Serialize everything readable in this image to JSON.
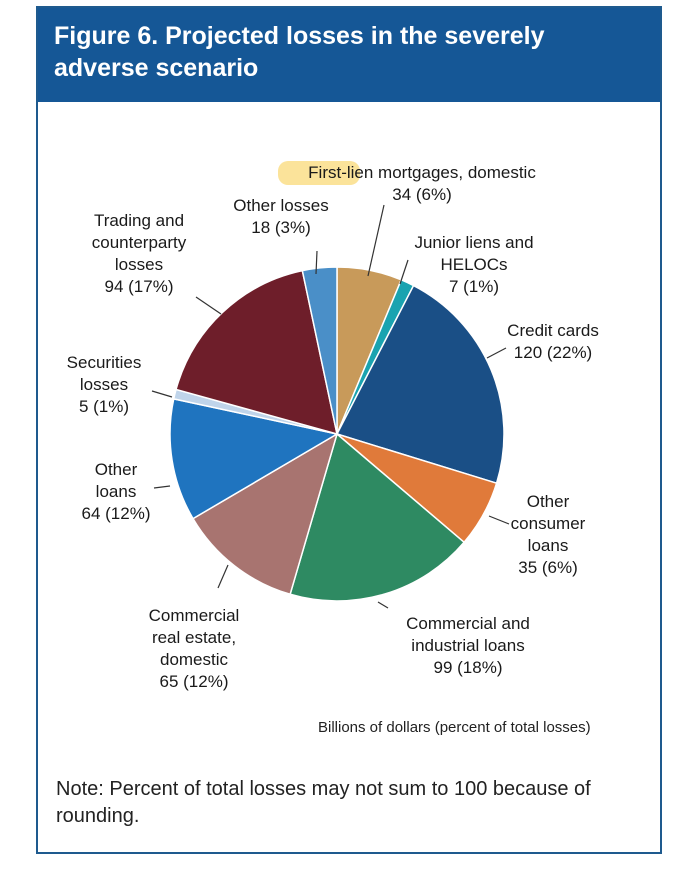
{
  "header": {
    "title": "Figure 6. Projected losses in the severely adverse scenario"
  },
  "units_text": "Billions of dollars (percent of total losses)",
  "note": "Note: Percent of total losses may not sum to 100 because of rounding.",
  "colors": {
    "first_lien": "#c89a5a",
    "junior_liens": "#1aa3b0",
    "credit_cards": "#1a4f86",
    "other_consumer": "#e07a3a",
    "ci_loans": "#2e8a62",
    "cre": "#a87470",
    "other_loans": "#1f74bf",
    "securities": "#bfd4ea",
    "trading": "#6e1e2a",
    "other_losses": "#4a8fc8",
    "highlight": "#fbe39a"
  },
  "chart_data": {
    "type": "pie",
    "title": "Figure 6. Projected losses in the severely adverse scenario",
    "units": "Billions of dollars (percent of total losses)",
    "slices": [
      {
        "name": "First-lien mortgages, domestic",
        "value": 34,
        "percent": 6,
        "label_lines": [
          "First-lien mortgages, domestic",
          "34 (6%)"
        ],
        "color": "#c89a5a"
      },
      {
        "name": "Junior liens and HELOCs",
        "value": 7,
        "percent": 1,
        "label_lines": [
          "Junior liens and",
          "HELOCs",
          "7 (1%)"
        ],
        "color": "#1aa3b0"
      },
      {
        "name": "Credit cards",
        "value": 120,
        "percent": 22,
        "label_lines": [
          "Credit cards",
          "120 (22%)"
        ],
        "color": "#1a4f86"
      },
      {
        "name": "Other consumer loans",
        "value": 35,
        "percent": 6,
        "label_lines": [
          "Other",
          "consumer",
          "loans",
          "35 (6%)"
        ],
        "color": "#e07a3a"
      },
      {
        "name": "Commercial and industrial loans",
        "value": 99,
        "percent": 18,
        "label_lines": [
          "Commercial and",
          "industrial loans",
          "99 (18%)"
        ],
        "color": "#2e8a62"
      },
      {
        "name": "Commercial real estate, domestic",
        "value": 65,
        "percent": 12,
        "label_lines": [
          "Commercial",
          "real estate,",
          "domestic",
          "65 (12%)"
        ],
        "color": "#a87470"
      },
      {
        "name": "Other loans",
        "value": 64,
        "percent": 12,
        "label_lines": [
          "Other",
          "loans",
          "64 (12%)"
        ],
        "color": "#1f74bf"
      },
      {
        "name": "Securities losses",
        "value": 5,
        "percent": 1,
        "label_lines": [
          "Securities",
          "losses",
          "5 (1%)"
        ],
        "color": "#bfd4ea"
      },
      {
        "name": "Trading and counterparty losses",
        "value": 94,
        "percent": 17,
        "label_lines": [
          "Trading and",
          "counterparty",
          "losses",
          "94 (17%)"
        ],
        "color": "#6e1e2a"
      },
      {
        "name": "Other losses",
        "value": 18,
        "percent": 3,
        "label_lines": [
          "Other losses",
          "18 (3%)"
        ],
        "color": "#4a8fc8"
      }
    ]
  }
}
